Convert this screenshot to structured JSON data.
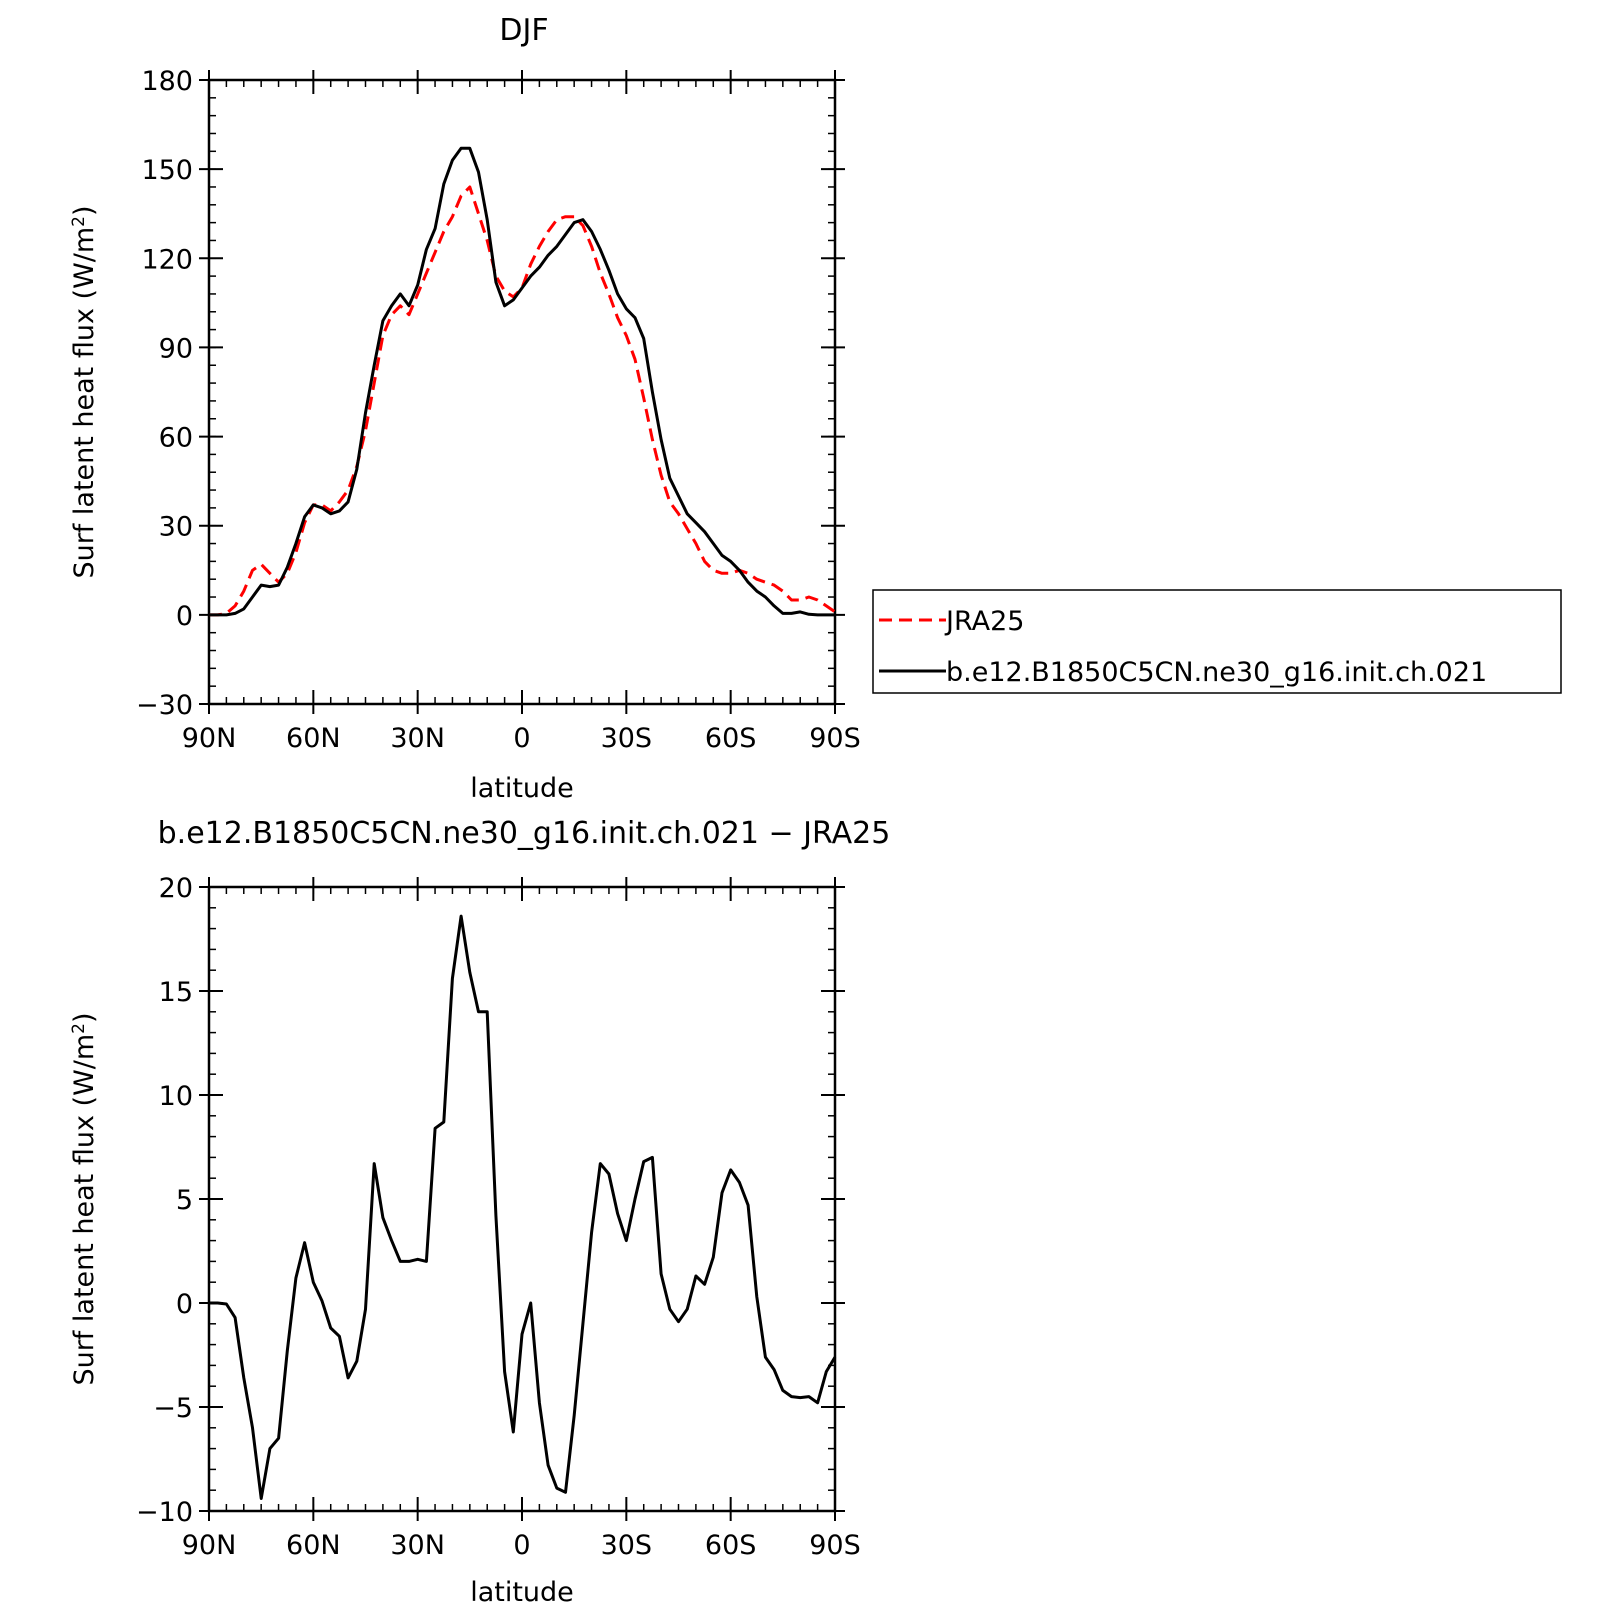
{
  "chart_data": [
    {
      "type": "line",
      "title": "DJF",
      "xlabel": "latitude",
      "ylabel": "Surf latent heat flux (W/m²)",
      "ylabel_main": "Surf latent heat flux (W/m",
      "ylabel_sup": "2",
      "ylabel_close": ")",
      "xlim": [
        90,
        -90
      ],
      "ylim": [
        -30,
        180
      ],
      "xticks": [
        90,
        60,
        30,
        0,
        -30,
        -60,
        -90
      ],
      "xtick_labels": [
        "90N",
        "60N",
        "30N",
        "0",
        "30S",
        "60S",
        "90S"
      ],
      "yticks": [
        -30,
        0,
        30,
        60,
        90,
        120,
        150,
        180
      ],
      "ytick_labels": [
        "−30",
        "0",
        "30",
        "60",
        "90",
        "120",
        "150",
        "180"
      ],
      "legend_position": "right",
      "series": [
        {
          "name": "JRA25",
          "color": "#ff0000",
          "dash": "dashed",
          "x": [
            90,
            87.5,
            85,
            82.5,
            80,
            77.5,
            75,
            72.5,
            70,
            67.5,
            65,
            62.5,
            60,
            57.5,
            55,
            52.5,
            50,
            47.5,
            45,
            42.5,
            40,
            37.5,
            35,
            32.5,
            30,
            27.5,
            25,
            22.5,
            20,
            17.5,
            15,
            12.5,
            10,
            7.5,
            5,
            2.5,
            0,
            -2.5,
            -5,
            -7.5,
            -10,
            -12.5,
            -15,
            -17.5,
            -20,
            -22.5,
            -25,
            -27.5,
            -30,
            -32.5,
            -35,
            -37.5,
            -40,
            -42.5,
            -45,
            -47.5,
            -50,
            -52.5,
            -55,
            -57.5,
            -60,
            -62.5,
            -65,
            -67.5,
            -70,
            -72.5,
            -75,
            -77.5,
            -80,
            -82.5,
            -85,
            -87.5,
            -90
          ],
          "y": [
            0,
            0,
            0.5,
            3,
            8,
            15,
            17,
            14,
            11,
            14,
            21,
            31,
            37,
            37,
            35,
            38,
            42,
            50,
            62,
            78,
            94,
            101,
            104,
            101,
            108,
            115,
            122,
            129,
            134,
            141,
            144,
            135,
            126,
            114,
            109,
            107,
            110,
            118,
            124,
            129,
            133,
            134,
            134,
            131,
            124,
            115,
            108,
            100,
            94,
            86,
            73,
            59,
            47,
            38,
            34,
            29,
            24,
            18,
            15,
            14,
            14,
            15,
            14,
            12,
            11,
            10,
            8,
            5,
            5,
            6,
            5,
            3,
            1
          ]
        },
        {
          "name": "b.e12.B1850C5CN.ne30_g16.init.ch.021",
          "color": "#000000",
          "dash": "solid",
          "x": [
            90,
            87.5,
            85,
            82.5,
            80,
            77.5,
            75,
            72.5,
            70,
            67.5,
            65,
            62.5,
            60,
            57.5,
            55,
            52.5,
            50,
            47.5,
            45,
            42.5,
            40,
            37.5,
            35,
            32.5,
            30,
            27.5,
            25,
            22.5,
            20,
            17.5,
            15,
            12.5,
            10,
            7.5,
            5,
            2.5,
            0,
            -2.5,
            -5,
            -7.5,
            -10,
            -12.5,
            -15,
            -17.5,
            -20,
            -22.5,
            -25,
            -27.5,
            -30,
            -32.5,
            -35,
            -37.5,
            -40,
            -42.5,
            -45,
            -47.5,
            -50,
            -52.5,
            -55,
            -57.5,
            -60,
            -62.5,
            -65,
            -67.5,
            -70,
            -72.5,
            -75,
            -77.5,
            -80,
            -82.5,
            -85,
            -87.5,
            -90
          ],
          "y": [
            0,
            0,
            0,
            0.5,
            2,
            6,
            10,
            9.5,
            10,
            16,
            24,
            33,
            37,
            36,
            34,
            35,
            38,
            49,
            68,
            84,
            99,
            104,
            108,
            104,
            111,
            123,
            130,
            145,
            153,
            157,
            157,
            149,
            133,
            112,
            104,
            106,
            110,
            114,
            117,
            121,
            124,
            128,
            132,
            133,
            129,
            123,
            116,
            108,
            103,
            100,
            93,
            75,
            59,
            46,
            40,
            34,
            31,
            28,
            24,
            20,
            18,
            15,
            11,
            8,
            6,
            3,
            0.5,
            0.5,
            1,
            0.2,
            0,
            0,
            0
          ]
        }
      ]
    },
    {
      "type": "line",
      "title": "b.e12.B1850C5CN.ne30_g16.init.ch.021 − JRA25",
      "xlabel": "latitude",
      "ylabel": "Surf latent heat flux (W/m²)",
      "ylabel_main": "Surf latent heat flux (W/m",
      "ylabel_sup": "2",
      "ylabel_close": ")",
      "xlim": [
        90,
        -90
      ],
      "ylim": [
        -10,
        20
      ],
      "xticks": [
        90,
        60,
        30,
        0,
        -30,
        -60,
        -90
      ],
      "xtick_labels": [
        "90N",
        "60N",
        "30N",
        "0",
        "30S",
        "60S",
        "90S"
      ],
      "yticks": [
        -10,
        -5,
        0,
        5,
        10,
        15,
        20
      ],
      "ytick_labels": [
        "−10",
        "−5",
        "0",
        "5",
        "10",
        "15",
        "20"
      ],
      "series": [
        {
          "color": "#000000",
          "dash": "solid",
          "x": [
            90,
            87.5,
            85,
            82.5,
            80,
            77.5,
            75,
            72.5,
            70,
            67.5,
            65,
            62.5,
            60,
            57.5,
            55,
            52.5,
            50,
            47.5,
            45,
            42.5,
            40,
            37.5,
            35,
            32.5,
            30,
            27.5,
            25,
            22.5,
            20,
            17.5,
            15,
            12.5,
            10,
            7.5,
            5,
            2.5,
            0,
            -2.5,
            -5,
            -7.5,
            -10,
            -12.5,
            -15,
            -17.5,
            -20,
            -22.5,
            -25,
            -27.5,
            -30,
            -32.5,
            -35,
            -37.5,
            -40,
            -42.5,
            -45,
            -47.5,
            -50,
            -52.5,
            -55,
            -57.5,
            -60,
            -62.5,
            -65,
            -67.5,
            -70,
            -72.5,
            -75,
            -77.5,
            -80,
            -82.5,
            -85,
            -87.5,
            -90
          ],
          "y": [
            0,
            0,
            -0.05,
            -0.7,
            -3.6,
            -6,
            -9.4,
            -7,
            -6.5,
            -2.3,
            1.2,
            2.9,
            1,
            0.1,
            -1.2,
            -1.6,
            -3.6,
            -2.8,
            -0.3,
            6.7,
            4.1,
            3,
            2,
            2,
            2.1,
            2,
            8.4,
            8.7,
            15.6,
            18.6,
            15.9,
            14,
            14,
            4.2,
            -3.3,
            -6.2,
            -1.5,
            0,
            -4.8,
            -7.8,
            -8.9,
            -9.1,
            -5.4,
            -1,
            3.4,
            6.7,
            6.2,
            4.3,
            3,
            5,
            6.8,
            7,
            1.4,
            -0.3,
            -0.9,
            -0.3,
            1.3,
            0.9,
            2.2,
            5.3,
            6.4,
            5.8,
            4.7,
            0.3,
            -2.6,
            -3.2,
            -4.2,
            -4.5,
            -4.55,
            -4.5,
            -4.8,
            -3.3,
            -2.6
          ]
        }
      ]
    }
  ]
}
